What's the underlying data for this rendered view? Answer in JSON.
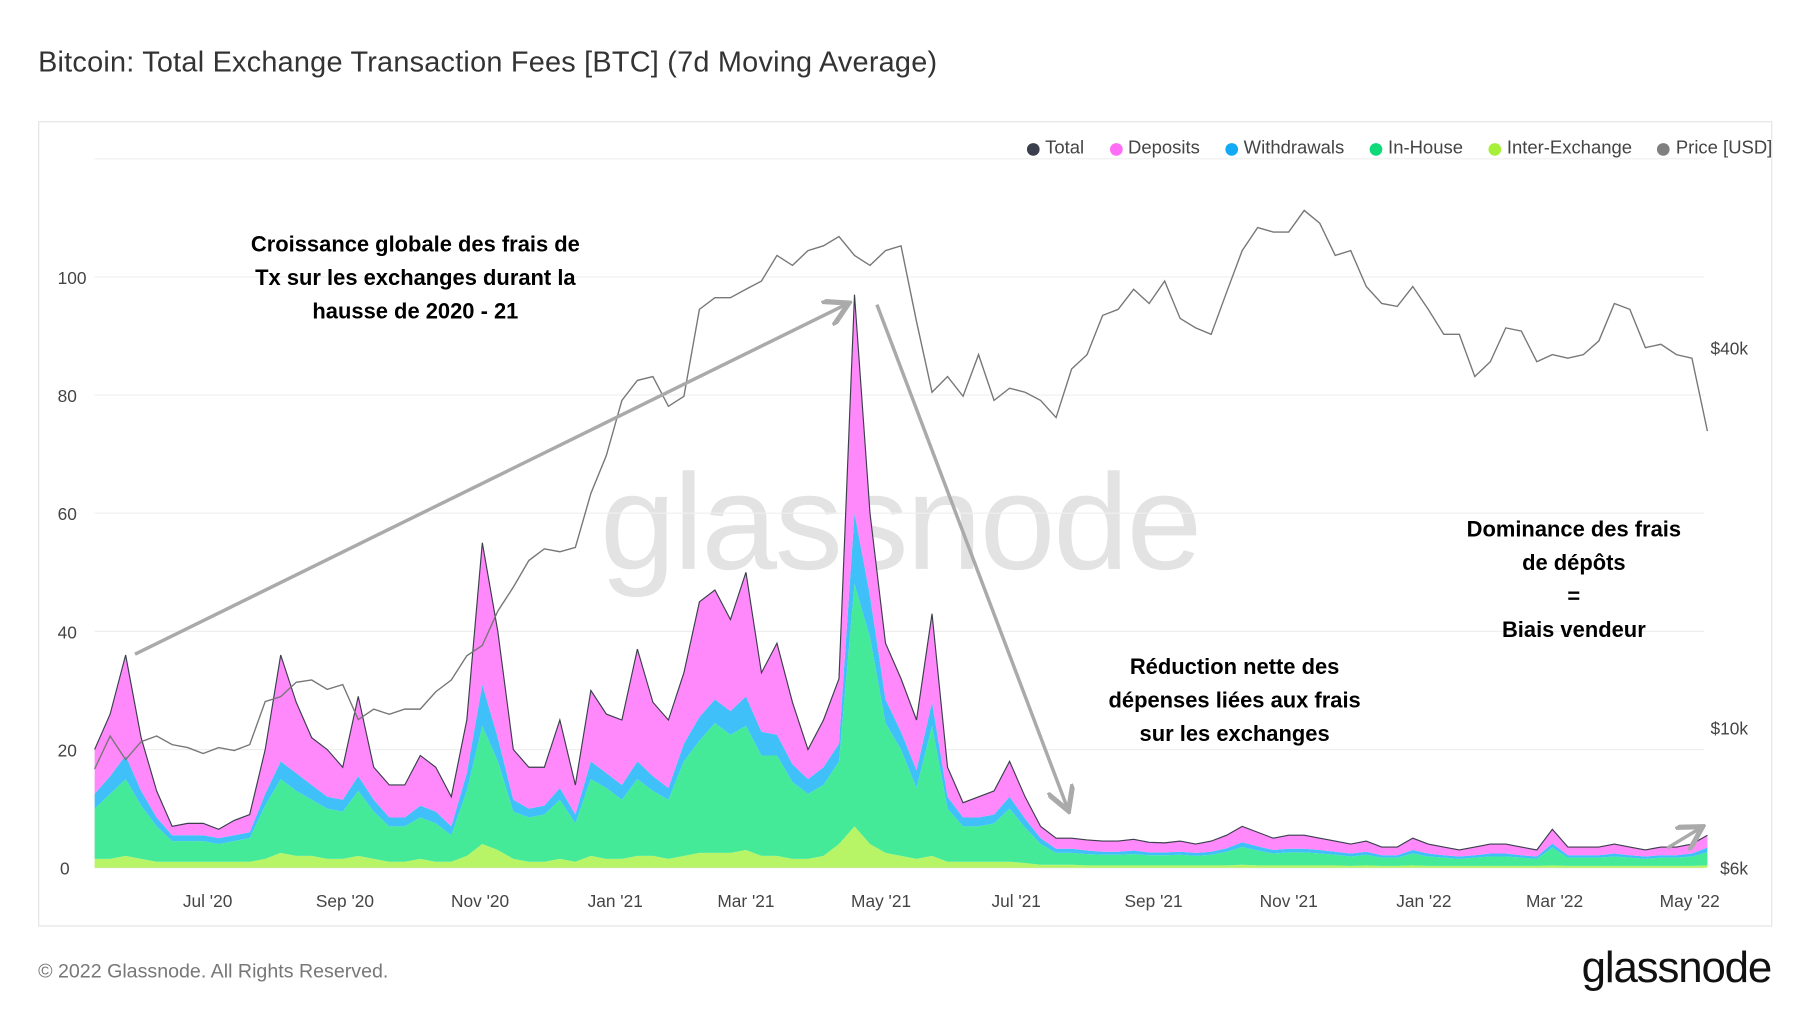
{
  "title": "Bitcoin: Total Exchange Transaction Fees [BTC] (7d Moving Average)",
  "footer": "© 2022 Glassnode. All Rights Reserved.",
  "logo": "glassnode",
  "watermark": "glassnode",
  "annotations": {
    "growth": [
      "Croissance globale des frais de",
      "Tx sur les exchanges durant la",
      "hausse de 2020 - 21"
    ],
    "reduction": [
      "Réduction nette des",
      "dépenses liées aux frais",
      "sur les exchanges"
    ],
    "dominance": [
      "Dominance des frais",
      "de dépôts",
      "=",
      "Biais vendeur"
    ]
  },
  "legend": [
    {
      "label": "Total",
      "color": "#3a3f4b"
    },
    {
      "label": "Deposits",
      "color": "#ff6cf5"
    },
    {
      "label": "Withdrawals",
      "color": "#12aaf5"
    },
    {
      "label": "In-House",
      "color": "#10d97a"
    },
    {
      "label": "Inter-Exchange",
      "color": "#a6f03a"
    },
    {
      "label": "Price [USD]",
      "color": "#808080"
    }
  ],
  "chart_data": {
    "type": "area",
    "stacked": true,
    "title": "Bitcoin: Total Exchange Transaction Fees [BTC] (7d Moving Average)",
    "x_start": "2020-05-11",
    "x_step": "7 days",
    "x_tick_labels": [
      "Jul '20",
      "Sep '20",
      "Nov '20",
      "Jan '21",
      "Mar '21",
      "May '21",
      "Jul '21",
      "Sep '21",
      "Nov '21",
      "Jan '22",
      "Mar '22",
      "May '22"
    ],
    "y_ticks": [
      0,
      20,
      40,
      60,
      80,
      100
    ],
    "ylim": [
      0,
      120
    ],
    "y2_scale": "log",
    "y2_ticks": [
      "$6k",
      "$10k",
      "$40k"
    ],
    "y2_tick_values": [
      6000,
      10000,
      40000
    ],
    "grid": true,
    "legend_position": "top-right",
    "series": [
      {
        "name": "Inter-Exchange",
        "color": "#b8f566",
        "values": [
          1.5,
          1.5,
          2,
          1.5,
          1,
          1,
          1,
          1,
          1,
          1,
          1,
          1.5,
          2.5,
          2,
          2,
          1.5,
          1.5,
          2,
          1.5,
          1,
          1,
          1.5,
          1,
          1,
          2,
          4,
          3,
          1.5,
          1,
          1,
          1.5,
          1,
          2,
          1.5,
          1.5,
          2,
          2,
          1.5,
          2,
          2.5,
          2.5,
          2.5,
          3,
          2,
          2,
          1.5,
          1.5,
          2,
          4,
          7,
          4,
          2.5,
          2,
          1.5,
          2,
          1,
          1,
          1,
          1,
          1,
          0.8,
          0.5,
          0.5,
          0.5,
          0.4,
          0.4,
          0.4,
          0.4,
          0.4,
          0.4,
          0.4,
          0.4,
          0.4,
          0.4,
          0.5,
          0.4,
          0.4,
          0.4,
          0.4,
          0.4,
          0.4,
          0.3,
          0.4,
          0.3,
          0.3,
          0.4,
          0.3,
          0.3,
          0.3,
          0.3,
          0.3,
          0.3,
          0.3,
          0.3,
          0.4,
          0.3,
          0.3,
          0.3,
          0.3,
          0.3,
          0.3,
          0.3,
          0.3,
          0.3,
          0.4
        ]
      },
      {
        "name": "In-House",
        "color": "#45ea98",
        "values": [
          8.5,
          11,
          13,
          9,
          6,
          3.5,
          3.5,
          3.5,
          3,
          3.5,
          4,
          9,
          12.5,
          11,
          9.5,
          8.5,
          8,
          11,
          8,
          6,
          6,
          7,
          6.5,
          4.5,
          11,
          20,
          15,
          8,
          7.5,
          8,
          10,
          6.5,
          13,
          12,
          10,
          13,
          11,
          10,
          16,
          19,
          22,
          20,
          21,
          17,
          17,
          13,
          11,
          12,
          14,
          41,
          35,
          22,
          18,
          12,
          22,
          9,
          6,
          6,
          6.5,
          9,
          6,
          3.5,
          2,
          2,
          1.9,
          1.8,
          1.8,
          1.9,
          1.7,
          1.7,
          1.8,
          1.6,
          1.8,
          2.3,
          3,
          2.5,
          2,
          2.2,
          2.2,
          2,
          1.8,
          1.6,
          1.8,
          1.4,
          1.4,
          2,
          1.6,
          1.4,
          1.2,
          1.4,
          1.6,
          1.6,
          1.4,
          1.2,
          3,
          1.4,
          1.4,
          1.4,
          1.6,
          1.4,
          1.2,
          1.4,
          1.4,
          1.6,
          2.2
        ]
      },
      {
        "name": "Withdrawals",
        "color": "#40c0f8",
        "values": [
          2.5,
          3,
          4,
          2.5,
          1.5,
          1,
          1,
          1,
          1,
          1,
          1,
          2,
          3,
          3,
          2.5,
          2,
          2,
          2.5,
          2,
          1.5,
          1.5,
          2,
          2,
          1.5,
          3,
          7,
          4,
          2,
          1.5,
          1.5,
          2,
          1.5,
          3,
          2.5,
          2.5,
          3,
          2.5,
          2,
          3,
          4,
          4,
          4,
          5,
          4,
          3.5,
          3,
          2.5,
          3,
          3,
          12,
          7,
          4,
          3,
          3,
          4,
          2,
          1.5,
          1.5,
          1.5,
          2,
          1.5,
          1,
          0.7,
          0.7,
          0.6,
          0.5,
          0.5,
          0.6,
          0.5,
          0.5,
          0.5,
          0.5,
          0.5,
          0.6,
          0.8,
          0.7,
          0.6,
          0.6,
          0.6,
          0.6,
          0.5,
          0.5,
          0.5,
          0.4,
          0.4,
          0.6,
          0.5,
          0.4,
          0.4,
          0.4,
          0.5,
          0.5,
          0.4,
          0.4,
          0.7,
          0.4,
          0.4,
          0.4,
          0.5,
          0.4,
          0.4,
          0.4,
          0.4,
          0.5,
          0.8
        ]
      },
      {
        "name": "Deposits",
        "color": "#ff88fb",
        "values": [
          7.5,
          10.5,
          17,
          9,
          4.5,
          1.5,
          2,
          2,
          1.5,
          2.5,
          3,
          7.5,
          18,
          12,
          8,
          8,
          5.5,
          13.5,
          5.5,
          5.5,
          5.5,
          8.5,
          7.5,
          5,
          9,
          24,
          18,
          8.5,
          7,
          6.5,
          11.5,
          5,
          12,
          10,
          11,
          19,
          12.5,
          11.5,
          12,
          19.5,
          18.5,
          15.5,
          21,
          10,
          15.5,
          10.5,
          5,
          8,
          11,
          37,
          14,
          9.5,
          9,
          8.5,
          15,
          5,
          2.5,
          3.5,
          4,
          6,
          3.7,
          2,
          1.8,
          1.8,
          1.8,
          1.8,
          1.8,
          1.9,
          1.7,
          1.6,
          1.8,
          1.5,
          1.8,
          2.2,
          2.7,
          2.4,
          2,
          2.3,
          2.3,
          2,
          1.8,
          1.6,
          1.8,
          1.4,
          1.4,
          2,
          1.6,
          1.4,
          1.1,
          1.4,
          1.6,
          1.6,
          1.4,
          1.1,
          2.4,
          1.4,
          1.4,
          1.4,
          1.6,
          1.4,
          1.1,
          1.4,
          1.4,
          1.6,
          2.1
        ]
      },
      {
        "name": "Price [USD]",
        "color": "#808080",
        "axis": "right",
        "values": [
          8600,
          9700,
          8900,
          9500,
          9700,
          9400,
          9300,
          9100,
          9300,
          9200,
          9400,
          11000,
          11200,
          11800,
          11900,
          11500,
          11700,
          10300,
          10700,
          10500,
          10700,
          10700,
          11400,
          11900,
          13000,
          13500,
          15300,
          16700,
          18400,
          19200,
          19000,
          19300,
          23500,
          27000,
          33000,
          35500,
          36000,
          32300,
          33500,
          46000,
          48000,
          48000,
          49500,
          51000,
          56000,
          54000,
          57000,
          58000,
          60000,
          56000,
          54000,
          57000,
          58000,
          44000,
          34000,
          36000,
          33500,
          39000,
          33000,
          34500,
          34000,
          33000,
          31000,
          37000,
          39000,
          45000,
          46000,
          49500,
          47000,
          51000,
          44500,
          43000,
          42000,
          49000,
          57000,
          62000,
          61000,
          61000,
          66000,
          63000,
          56000,
          57000,
          50000,
          47000,
          46500,
          50000,
          46000,
          42000,
          42000,
          36000,
          38000,
          43000,
          42500,
          38000,
          39000,
          38500,
          39000,
          41000,
          47000,
          46000,
          40000,
          40500,
          39000,
          38500,
          29500
        ]
      }
    ]
  }
}
